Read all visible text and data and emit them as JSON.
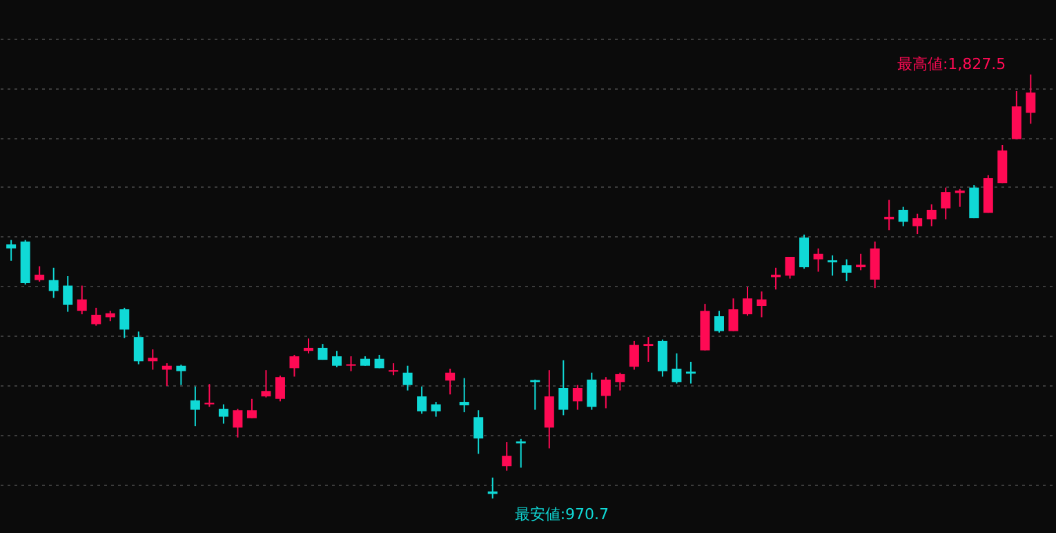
{
  "chart_data": {
    "type": "candlestick",
    "categories": [
      null,
      null,
      null,
      null,
      null,
      null,
      null,
      null,
      null,
      null,
      null,
      null,
      null,
      null,
      null,
      null,
      null,
      null,
      null,
      null,
      null,
      null,
      null,
      null,
      null,
      null,
      null,
      null,
      null,
      null,
      null,
      null,
      null,
      null,
      null,
      null,
      null,
      null,
      null,
      null,
      null,
      null,
      null,
      null,
      null,
      null,
      null,
      null,
      null,
      null,
      null,
      null,
      null,
      null,
      null,
      null,
      null,
      null,
      null,
      null,
      null,
      null,
      null,
      null,
      null,
      null,
      null,
      null,
      null,
      null,
      null,
      null,
      null
    ],
    "ohlc": [
      [
        1484,
        1493,
        1451,
        1476
      ],
      [
        1490,
        1493,
        1403,
        1406
      ],
      [
        1412,
        1440,
        1409,
        1423
      ],
      [
        1412,
        1437,
        1376,
        1390
      ],
      [
        1401,
        1420,
        1348,
        1362
      ],
      [
        1350,
        1401,
        1343,
        1373
      ],
      [
        1323,
        1356,
        1320,
        1342
      ],
      [
        1337,
        1350,
        1329,
        1345
      ],
      [
        1353,
        1356,
        1295,
        1312
      ],
      [
        1297,
        1308,
        1242,
        1248
      ],
      [
        1248,
        1272,
        1231,
        1255
      ],
      [
        1231,
        1244,
        1198,
        1239
      ],
      [
        1239,
        1241,
        1200,
        1228
      ],
      [
        1169,
        1197,
        1117,
        1150
      ],
      [
        1161,
        1202,
        1156,
        1164
      ],
      [
        1152,
        1161,
        1122,
        1136
      ],
      [
        1114,
        1152,
        1094,
        1149
      ],
      [
        1133,
        1172,
        1133,
        1149
      ],
      [
        1177,
        1230,
        1175,
        1188
      ],
      [
        1172,
        1219,
        1167,
        1216
      ],
      [
        1234,
        1261,
        1217,
        1258
      ],
      [
        1269,
        1294,
        1264,
        1275
      ],
      [
        1275,
        1283,
        1251,
        1251
      ],
      [
        1258,
        1269,
        1236,
        1239
      ],
      [
        1239,
        1258,
        1228,
        1242
      ],
      [
        1253,
        1258,
        1239,
        1239
      ],
      [
        1253,
        1261,
        1234,
        1234
      ],
      [
        1227,
        1244,
        1220,
        1230
      ],
      [
        1225,
        1239,
        1189,
        1200
      ],
      [
        1177,
        1197,
        1142,
        1147
      ],
      [
        1161,
        1166,
        1136,
        1147
      ],
      [
        1209,
        1233,
        1181,
        1225
      ],
      [
        1166,
        1214,
        1145,
        1159
      ],
      [
        1135,
        1149,
        1061,
        1092
      ],
      [
        985,
        1013,
        970.7,
        980
      ],
      [
        1036,
        1085,
        1027,
        1057
      ],
      [
        1086,
        1091,
        1033,
        1082
      ],
      [
        1210,
        1211,
        1150,
        1206
      ],
      [
        1114,
        1230,
        1072,
        1177
      ],
      [
        1194,
        1250,
        1139,
        1150
      ],
      [
        1167,
        1200,
        1150,
        1194
      ],
      [
        1211,
        1225,
        1150,
        1156
      ],
      [
        1178,
        1216,
        1153,
        1211
      ],
      [
        1206,
        1225,
        1189,
        1222
      ],
      [
        1237,
        1289,
        1231,
        1281
      ],
      [
        1279,
        1297,
        1247,
        1283
      ],
      [
        1289,
        1292,
        1217,
        1228
      ],
      [
        1233,
        1264,
        1203,
        1206
      ],
      [
        1227,
        1247,
        1203,
        1223
      ],
      [
        1270,
        1364,
        1270,
        1350
      ],
      [
        1339,
        1350,
        1306,
        1309
      ],
      [
        1309,
        1375,
        1309,
        1353
      ],
      [
        1343,
        1398,
        1340,
        1375
      ],
      [
        1360,
        1389,
        1337,
        1373
      ],
      [
        1418,
        1437,
        1393,
        1423
      ],
      [
        1421,
        1459,
        1415,
        1459
      ],
      [
        1498,
        1504,
        1435,
        1438
      ],
      [
        1454,
        1476,
        1429,
        1465
      ],
      [
        1452,
        1462,
        1421,
        1448
      ],
      [
        1442,
        1454,
        1410,
        1427
      ],
      [
        1438,
        1465,
        1432,
        1443
      ],
      [
        1413,
        1490,
        1396,
        1476
      ],
      [
        1535,
        1574,
        1513,
        1540
      ],
      [
        1554,
        1560,
        1521,
        1530
      ],
      [
        1521,
        1546,
        1505,
        1537
      ],
      [
        1535,
        1565,
        1521,
        1554
      ],
      [
        1557,
        1599,
        1535,
        1590
      ],
      [
        1588,
        1596,
        1560,
        1593
      ],
      [
        1599,
        1604,
        1537,
        1537
      ],
      [
        1548,
        1624,
        1548,
        1618
      ],
      [
        1608,
        1685,
        1608,
        1674
      ],
      [
        1697,
        1794,
        1697,
        1763
      ],
      [
        1750,
        1827.5,
        1728,
        1791
      ]
    ],
    "colors": [
      "#10d9d6",
      "#10d9d6",
      "#ff0a54",
      "#10d9d6",
      "#10d9d6",
      "#ff0a54",
      "#ff0a54",
      "#ff0a54",
      "#10d9d6",
      "#10d9d6",
      "#ff0a54",
      "#ff0a54",
      "#10d9d6",
      "#10d9d6",
      "#ff0a54",
      "#10d9d6",
      "#ff0a54",
      "#ff0a54",
      "#ff0a54",
      "#ff0a54",
      "#ff0a54",
      "#ff0a54",
      "#10d9d6",
      "#10d9d6",
      "#ff0a54",
      "#10d9d6",
      "#10d9d6",
      "#ff0a54",
      "#10d9d6",
      "#10d9d6",
      "#10d9d6",
      "#ff0a54",
      "#10d9d6",
      "#10d9d6",
      "#10d9d6",
      "#ff0a54",
      "#10d9d6",
      "#10d9d6",
      "#ff0a54",
      "#10d9d6",
      "#ff0a54",
      "#10d9d6",
      "#ff0a54",
      "#ff0a54",
      "#ff0a54",
      "#ff0a54",
      "#10d9d6",
      "#10d9d6",
      "#10d9d6",
      "#ff0a54",
      "#10d9d6",
      "#ff0a54",
      "#ff0a54",
      "#ff0a54",
      "#ff0a54",
      "#ff0a54",
      "#10d9d6",
      "#ff0a54",
      "#10d9d6",
      "#10d9d6",
      "#ff0a54",
      "#ff0a54",
      "#ff0a54",
      "#10d9d6",
      "#ff0a54",
      "#ff0a54",
      "#ff0a54",
      "#ff0a54",
      "#10d9d6",
      "#ff0a54",
      "#ff0a54",
      "#ff0a54",
      "#ff0a54"
    ],
    "ylim": [
      901,
      1978
    ],
    "yticks": [
      {
        "value": 1000,
        "label": null
      },
      {
        "value": 1100,
        "label": null
      },
      {
        "value": 1200,
        "label": null
      },
      {
        "value": 1300,
        "label": null
      },
      {
        "value": 1400,
        "label": null
      },
      {
        "value": 1500,
        "label": null
      },
      {
        "value": 1600,
        "label": null
      },
      {
        "value": 1700,
        "label": null
      },
      {
        "value": 1800,
        "label": null
      },
      {
        "value": 1900,
        "label": null
      }
    ],
    "grid": "y",
    "tick_labels": false,
    "annotations": [
      "最高値:1,827.5",
      "最安値:970.7"
    ]
  }
}
